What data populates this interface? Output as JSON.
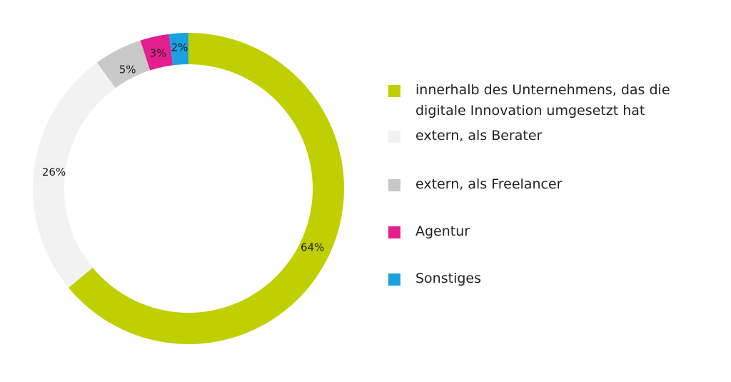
{
  "chart_data": {
    "type": "pie",
    "donut": true,
    "categories": [
      "innerhalb des Unternehmens, das die digitale Innovation umgesetzt hat",
      "extern, als Berater",
      "extern, als Freelancer",
      "Agentur",
      "Sonstiges"
    ],
    "values": [
      64,
      26,
      5,
      3,
      2
    ],
    "value_labels": [
      "64%",
      "26%",
      "5%",
      "3%",
      "2%"
    ],
    "colors": [
      "#c0cf00",
      "#f2f2f2",
      "#c8c8c8",
      "#e51e8f",
      "#1ba1e2"
    ],
    "legend_placement": "right"
  }
}
